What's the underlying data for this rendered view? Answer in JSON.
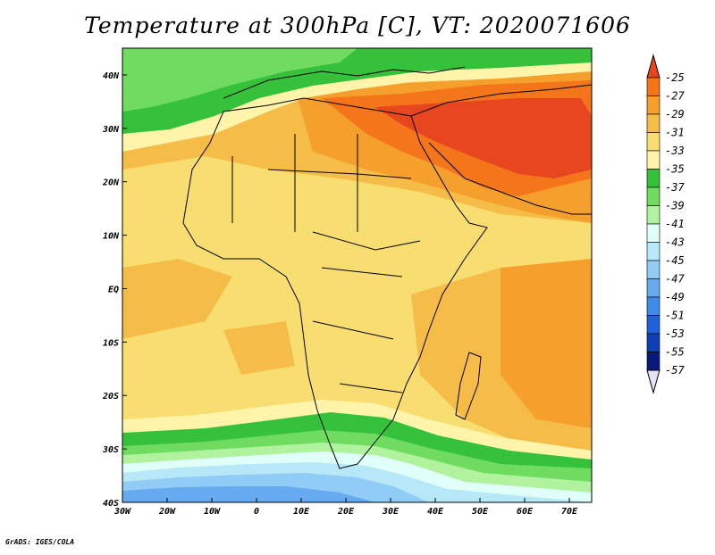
{
  "title": "Temperature at 300hPa [C], VT: 2020071606",
  "footer": "GrADS: IGES/COLA",
  "map": {
    "lon_range": [
      -30,
      75
    ],
    "lat_range": [
      -40,
      45
    ],
    "x_ticks": [
      "30W",
      "20W",
      "10W",
      "0",
      "10E",
      "20E",
      "30E",
      "40E",
      "50E",
      "60E",
      "70E"
    ],
    "y_ticks": [
      "40S",
      "30S",
      "20S",
      "10S",
      "EQ",
      "10N",
      "20N",
      "30N",
      "40N"
    ]
  },
  "colorbar": {
    "labels": [
      "-25",
      "-27",
      "-29",
      "-31",
      "-33",
      "-35",
      "-37",
      "-39",
      "-41",
      "-43",
      "-45",
      "-47",
      "-49",
      "-51",
      "-53",
      "-55",
      "-57"
    ],
    "colors": [
      "#e8461e",
      "#f5761a",
      "#f5a02d",
      "#f5bd48",
      "#f8dd71",
      "#fff4aa",
      "#35c23a",
      "#6fdc60",
      "#b1f29f",
      "#e0fff8",
      "#b6e8f8",
      "#90ccf5",
      "#66aaf0",
      "#3c8be8",
      "#2060d8",
      "#0e3fb5",
      "#0a1a7a",
      "#e6e2f8"
    ]
  }
}
